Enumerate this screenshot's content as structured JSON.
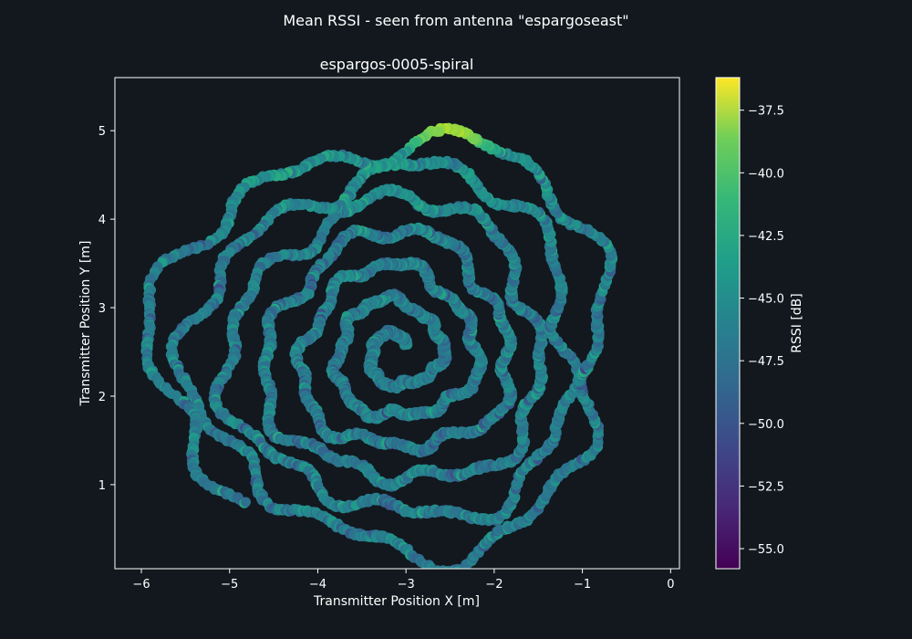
{
  "figure": {
    "suptitle": "Mean RSSI - seen from antenna \"espargoseast\""
  },
  "chart_data": {
    "type": "scatter",
    "title": "espargos-0005-spiral",
    "xlabel": "Transmitter Position X [m]",
    "ylabel": "Transmitter Position Y [m]",
    "xlim": [
      -6.3,
      0.1
    ],
    "ylim": [
      0.05,
      5.6
    ],
    "x_ticks": [
      "−6",
      "−5",
      "−4",
      "−3",
      "−2",
      "−1",
      "0"
    ],
    "x_tick_values": [
      -6,
      -5,
      -4,
      -3,
      -2,
      -1,
      0
    ],
    "y_ticks": [
      "1",
      "2",
      "3",
      "4",
      "5"
    ],
    "y_tick_values": [
      1,
      2,
      3,
      4,
      5
    ],
    "grid": false,
    "colorbar": {
      "label": "RSSI [dB]",
      "range": [
        -55.8,
        -36.2
      ],
      "ticks": [
        "−37.5",
        "−40.0",
        "−42.5",
        "−45.0",
        "−47.5",
        "−50.0",
        "−52.5",
        "−55.0"
      ],
      "tick_values": [
        -37.5,
        -40.0,
        -42.5,
        -45.0,
        -47.5,
        -50.0,
        -52.5,
        -55.0
      ],
      "colormap": "viridis"
    },
    "trajectory": {
      "description_note": "Transmitter moved along an outward spiral centered near (-3.1, 2.5) m; samples colored by mean RSSI.",
      "center": [
        -3.1,
        2.5
      ],
      "turns": 6.5,
      "start_radius_m": 0.15,
      "end_radius_m": 2.55,
      "rssi_typical": -47.5,
      "rssi_peak_region": {
        "x": [
          -3.0,
          -2.0
        ],
        "y": [
          4.6,
          5.4
        ],
        "value": -37.5
      }
    }
  }
}
